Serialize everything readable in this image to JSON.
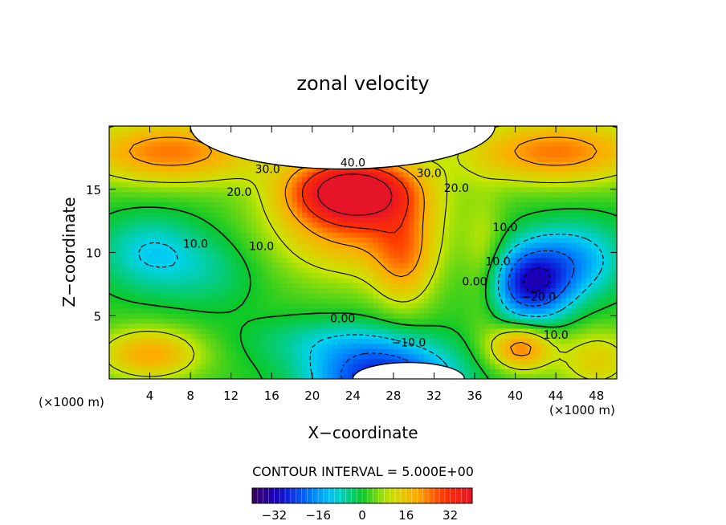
{
  "chart_data": {
    "type": "heatmap",
    "title": "zonal velocity",
    "xlabel": "X−coordinate",
    "ylabel": "Z−coordinate",
    "x_unit_left": "(×1000 m)",
    "x_unit_right": "(×1000 m)",
    "xlim": [
      0,
      50
    ],
    "ylim": [
      0,
      20
    ],
    "xticks": [
      4,
      8,
      12,
      16,
      20,
      24,
      28,
      32,
      36,
      40,
      44,
      48
    ],
    "yticks": [
      5,
      10,
      15
    ],
    "contour_interval_text": "CONTOUR INTERVAL = 5.000E+00",
    "colorbar": {
      "range": [
        -40,
        40
      ],
      "ticks": [
        -32,
        -16,
        0,
        16,
        32
      ],
      "tick_labels": [
        "−32",
        "−16",
        "0",
        "16",
        "32"
      ]
    },
    "contour_labels": [
      {
        "text": "30.0",
        "x": 15.6,
        "y": 16.6
      },
      {
        "text": "40.0",
        "x": 24.0,
        "y": 17.1
      },
      {
        "text": "30.0",
        "x": 31.5,
        "y": 16.3
      },
      {
        "text": "20.0",
        "x": 34.2,
        "y": 15.1
      },
      {
        "text": "20.0",
        "x": 12.8,
        "y": 14.8
      },
      {
        "text": "10.0",
        "x": 8.5,
        "y": 10.7
      },
      {
        "text": "10.0",
        "x": 15.0,
        "y": 10.5
      },
      {
        "text": "0.00",
        "x": 23.0,
        "y": 4.8
      },
      {
        "text": "−10.0",
        "x": 29.5,
        "y": 2.9
      },
      {
        "text": "10.0",
        "x": 39.0,
        "y": 12.0
      },
      {
        "text": "10.0",
        "x": 38.3,
        "y": 9.3
      },
      {
        "text": "0.00",
        "x": 36.0,
        "y": 7.7
      },
      {
        "text": "−20.0",
        "x": 42.3,
        "y": 6.5
      },
      {
        "text": "10.0",
        "x": 44.0,
        "y": 3.5
      }
    ],
    "field_features": [
      {
        "value": 40,
        "x": 24,
        "y": 15,
        "sx": 6,
        "sy": 2.5
      },
      {
        "value": 18,
        "x": 24,
        "y": 12,
        "sx": 8,
        "sy": 4
      },
      {
        "value": 15,
        "x": 29,
        "y": 9.5,
        "sx": 3,
        "sy": 4
      },
      {
        "value": 22,
        "x": 6,
        "y": 18,
        "sx": 9,
        "sy": 2.5
      },
      {
        "value": 22,
        "x": 44,
        "y": 18,
        "sx": 9,
        "sy": 2.5
      },
      {
        "value": -12,
        "x": 4,
        "y": 10,
        "sx": 5,
        "sy": 3
      },
      {
        "value": -6,
        "x": 10,
        "y": 8.5,
        "sx": 5,
        "sy": 3
      },
      {
        "value": -30,
        "x": 41.5,
        "y": 7.5,
        "sx": 4,
        "sy": 3
      },
      {
        "value": -15,
        "x": 46,
        "y": 9.5,
        "sx": 5,
        "sy": 3
      },
      {
        "value": -30,
        "x": 27,
        "y": 0,
        "sx": 7,
        "sy": 2.8
      },
      {
        "value": -8,
        "x": 22,
        "y": 3,
        "sx": 8,
        "sy": 2
      },
      {
        "value": 18,
        "x": 4,
        "y": 2,
        "sx": 5,
        "sy": 2
      },
      {
        "value": 22,
        "x": 40.5,
        "y": 2.5,
        "sx": 3,
        "sy": 1.8
      },
      {
        "value": 12,
        "x": 48,
        "y": 1.5,
        "sx": 4,
        "sy": 2.5
      },
      {
        "value": 8,
        "x": 37,
        "y": 9,
        "sx": 2,
        "sy": 5
      }
    ],
    "missing_regions": [
      {
        "x0": 8,
        "x1": 38,
        "y_top": 20,
        "y_bottom": 16.6
      },
      {
        "x0": 24,
        "x1": 35,
        "y_top": 0,
        "y_bottom": 1.3
      }
    ]
  }
}
